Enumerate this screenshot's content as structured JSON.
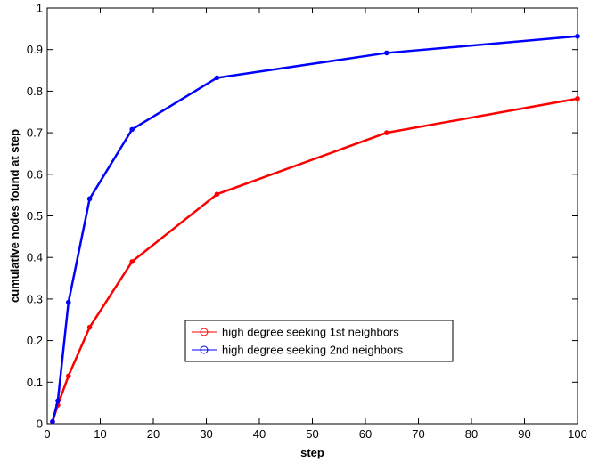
{
  "chart_data": {
    "type": "line",
    "title": "",
    "xlabel": "step",
    "ylabel": "cumulative nodes found at step",
    "xlim": [
      0,
      100
    ],
    "ylim": [
      0,
      1
    ],
    "xticks": [
      0,
      10,
      20,
      30,
      40,
      50,
      60,
      70,
      80,
      90,
      100
    ],
    "yticks": [
      0,
      0.1,
      0.2,
      0.3,
      0.4,
      0.5,
      0.6,
      0.7,
      0.8,
      0.9,
      1
    ],
    "xtick_labels": [
      "0",
      "10",
      "20",
      "30",
      "40",
      "50",
      "60",
      "70",
      "80",
      "90",
      "100"
    ],
    "ytick_labels": [
      "0",
      "0.1",
      "0.2",
      "0.3",
      "0.4",
      "0.5",
      "0.6",
      "0.7",
      "0.8",
      "0.9",
      "1"
    ],
    "grid": false,
    "legend_position": "center",
    "series": [
      {
        "name": "high degree seeking 1st neighbors",
        "color": "#ff0000",
        "x": [
          1,
          2,
          4,
          8,
          16,
          32,
          64,
          100
        ],
        "y": [
          0.005,
          0.045,
          0.115,
          0.232,
          0.39,
          0.552,
          0.7,
          0.782
        ]
      },
      {
        "name": "high degree seeking 2nd neighbors",
        "color": "#0000ff",
        "x": [
          1,
          2,
          4,
          8,
          16,
          32,
          64,
          100
        ],
        "y": [
          0.005,
          0.055,
          0.292,
          0.541,
          0.708,
          0.832,
          0.892,
          0.932
        ]
      }
    ]
  }
}
